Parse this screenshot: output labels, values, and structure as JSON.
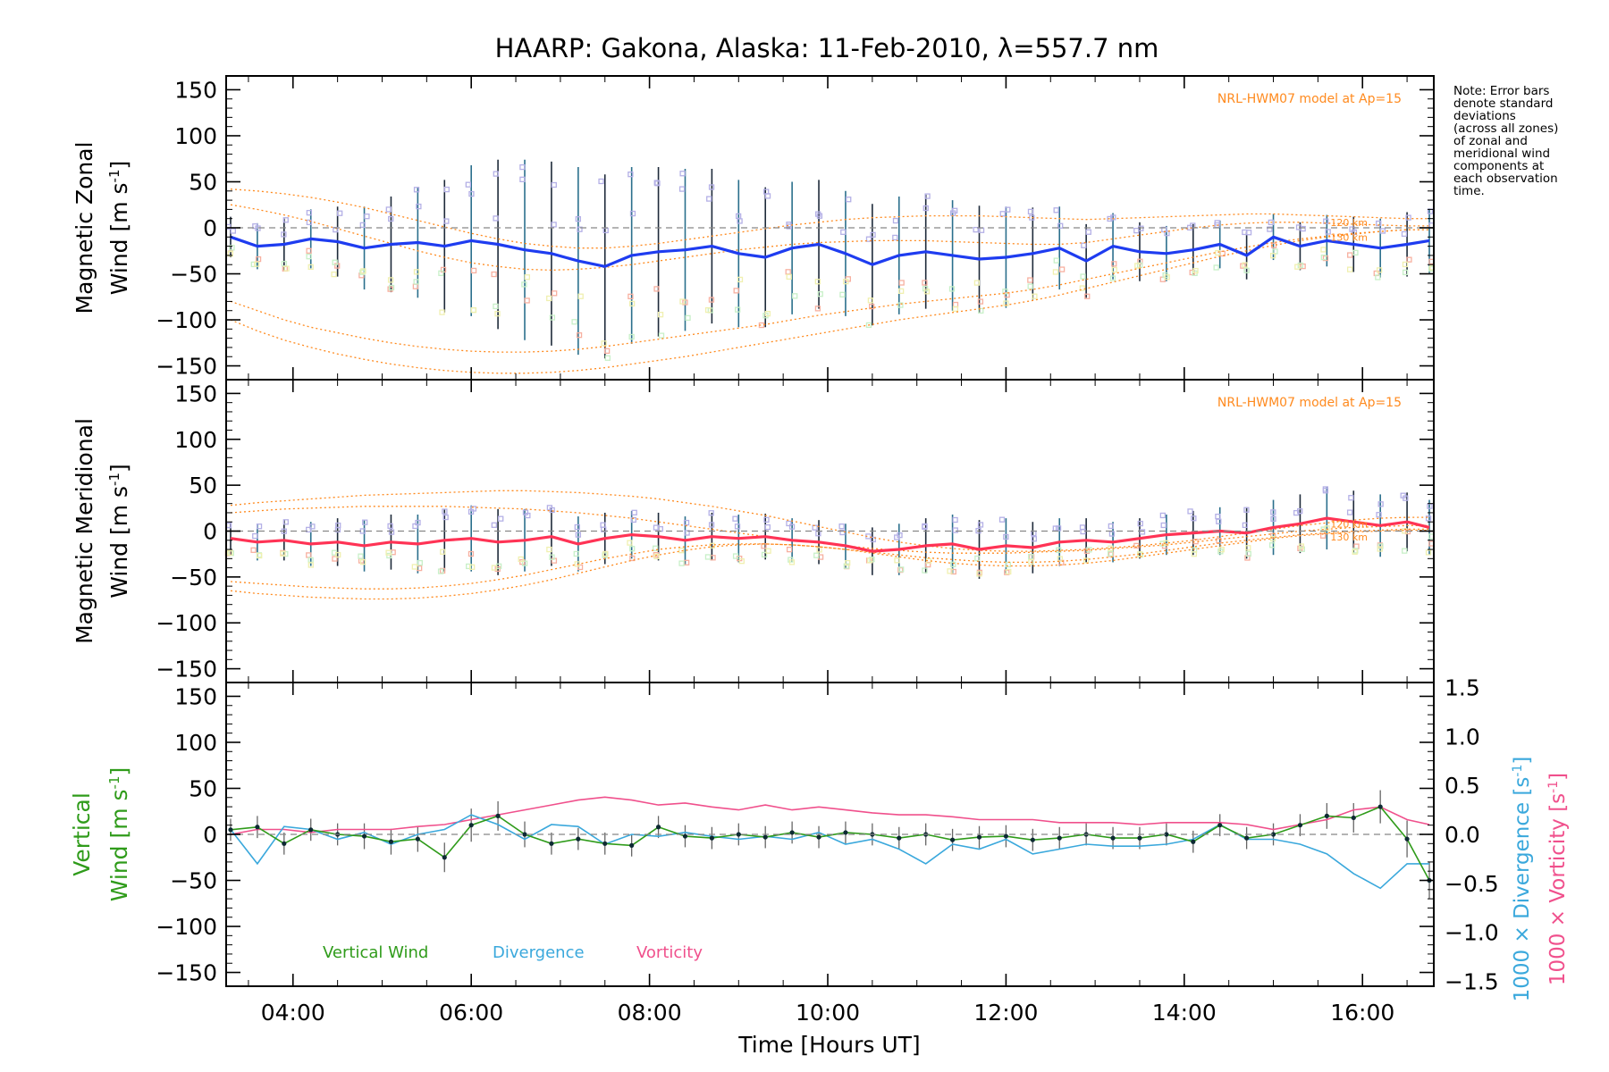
{
  "title": "HAARP: Gakona,  Alaska: 11-Feb-2010, λ=557.7 nm",
  "note": "Note: Error bars\ndenote standard\ndeviations\n(across all zones)\nof zonal and\nmeridional wind\ncomponents at\neach observation\ntime.",
  "colors": {
    "zonal": "#1e3cf0",
    "meridional": "#ff3355",
    "vertical": "#2f9b1a",
    "divergence": "#3aa8dc",
    "vorticity": "#f0508c",
    "model": "#ff8a1e",
    "zone_blue": "#b4b0e6",
    "zone_red": "#f7b0a0",
    "zone_green": "#c8f0c8",
    "zone_yellow": "#f0f0b0",
    "errorbar_dark": "#1e2a3a",
    "errorbar_teal": "#2a6f8c",
    "zero_line": "#888888"
  },
  "chart_data": [
    {
      "type": "line",
      "title": "",
      "ylabel_line1": "Magnetic Zonal",
      "ylabel_line2_prefix": "Wind [m s",
      "ylabel_sup": "-1",
      "ylabel_suffix": "]",
      "ylim": [
        -165,
        165
      ],
      "yticks": [
        "150",
        "100",
        "50",
        "0",
        "−50",
        "−100",
        "−150"
      ],
      "model_label": "NRL-HWM07 model at Ap=15",
      "model_tags": [
        "120 km",
        "130 km"
      ],
      "x": [
        3.3,
        3.6,
        3.9,
        4.2,
        4.5,
        4.8,
        5.1,
        5.4,
        5.7,
        6.0,
        6.3,
        6.6,
        6.9,
        7.2,
        7.5,
        7.8,
        8.1,
        8.4,
        8.7,
        9.0,
        9.3,
        9.6,
        9.9,
        10.2,
        10.5,
        10.8,
        11.1,
        11.4,
        11.7,
        12.0,
        12.3,
        12.6,
        12.9,
        13.2,
        13.5,
        13.8,
        14.1,
        14.4,
        14.7,
        15.0,
        15.3,
        15.6,
        15.9,
        16.2,
        16.5,
        16.75
      ],
      "series": [
        {
          "values": [
            -10,
            -20,
            -18,
            -12,
            -15,
            -22,
            -18,
            -16,
            -20,
            -14,
            -18,
            -24,
            -28,
            -36,
            -42,
            -30,
            -26,
            -24,
            -20,
            -28,
            -32,
            -22,
            -18,
            -28,
            -40,
            -30,
            -26,
            -30,
            -34,
            -32,
            -28,
            -22,
            -36,
            -20,
            -26,
            -28,
            -24,
            -18,
            -30,
            -10,
            -20,
            -14,
            -18,
            -22,
            -18,
            -14
          ],
          "err": [
            22,
            25,
            28,
            32,
            38,
            45,
            52,
            60,
            72,
            82,
            92,
            98,
            100,
            102,
            100,
            96,
            92,
            88,
            84,
            80,
            76,
            72,
            70,
            68,
            66,
            64,
            62,
            60,
            58,
            55,
            50,
            45,
            40,
            36,
            32,
            30,
            28,
            26,
            26,
            25,
            26,
            28,
            30,
            32,
            35,
            35
          ]
        },
        {
          "values": [
            42,
            40,
            37,
            33,
            28,
            22,
            15,
            8,
            1,
            -6,
            -12,
            -17,
            -20,
            -22,
            -22,
            -20,
            -17,
            -13,
            -9,
            -5,
            -1,
            3,
            6,
            9,
            11,
            12,
            13,
            13,
            13,
            12,
            11,
            10,
            9,
            10,
            11,
            12,
            13,
            14,
            15,
            15,
            14,
            13,
            12,
            11,
            10,
            10
          ]
        },
        {
          "values": [
            25,
            20,
            14,
            7,
            -1,
            -9,
            -17,
            -25,
            -32,
            -38,
            -42,
            -45,
            -46,
            -45,
            -43,
            -40,
            -36,
            -32,
            -28,
            -24,
            -21,
            -18,
            -16,
            -15,
            -14,
            -14,
            -14,
            -15,
            -16,
            -17,
            -18,
            -18,
            -16,
            -12,
            -8,
            -4,
            0,
            3,
            5,
            6,
            6,
            5,
            4,
            3,
            2,
            2
          ]
        },
        {
          "values": [
            -80,
            -90,
            -100,
            -108,
            -114,
            -120,
            -125,
            -129,
            -132,
            -134,
            -135,
            -135,
            -134,
            -132,
            -129,
            -125,
            -121,
            -117,
            -113,
            -109,
            -105,
            -100,
            -95,
            -91,
            -87,
            -83,
            -80,
            -77,
            -74,
            -71,
            -67,
            -62,
            -56,
            -50,
            -44,
            -38,
            -32,
            -26,
            -21,
            -16,
            -12,
            -9,
            -6,
            -4,
            -2,
            -2
          ]
        },
        {
          "values": [
            -100,
            -112,
            -122,
            -130,
            -137,
            -143,
            -148,
            -152,
            -155,
            -157,
            -158,
            -158,
            -157,
            -155,
            -152,
            -148,
            -144,
            -140,
            -135,
            -130,
            -125,
            -120,
            -115,
            -110,
            -105,
            -100,
            -96,
            -92,
            -88,
            -84,
            -79,
            -73,
            -66,
            -59,
            -52,
            -45,
            -38,
            -31,
            -25,
            -19,
            -14,
            -10,
            -7,
            -4,
            -2,
            -2
          ]
        }
      ]
    },
    {
      "type": "line",
      "title": "",
      "ylabel_line1": "Magnetic Meridional",
      "ylabel_line2_prefix": "Wind [m s",
      "ylabel_sup": "-1",
      "ylabel_suffix": "]",
      "ylim": [
        -165,
        165
      ],
      "yticks": [
        "150",
        "100",
        "50",
        "0",
        "−50",
        "−100",
        "−150"
      ],
      "model_label": "NRL-HWM07 model at Ap=15",
      "model_tags": [
        "120 km",
        "130 km"
      ],
      "x": [
        3.3,
        3.6,
        3.9,
        4.2,
        4.5,
        4.8,
        5.1,
        5.4,
        5.7,
        6.0,
        6.3,
        6.6,
        6.9,
        7.2,
        7.5,
        7.8,
        8.1,
        8.4,
        8.7,
        9.0,
        9.3,
        9.6,
        9.9,
        10.2,
        10.5,
        10.8,
        11.1,
        11.4,
        11.7,
        12.0,
        12.3,
        12.6,
        12.9,
        13.2,
        13.5,
        13.8,
        14.1,
        14.4,
        14.7,
        15.0,
        15.3,
        15.6,
        15.9,
        16.2,
        16.5,
        16.75
      ],
      "series": [
        {
          "values": [
            -8,
            -12,
            -10,
            -14,
            -12,
            -16,
            -12,
            -14,
            -10,
            -8,
            -12,
            -10,
            -6,
            -14,
            -8,
            -4,
            -6,
            -10,
            -6,
            -8,
            -6,
            -10,
            -12,
            -16,
            -22,
            -20,
            -16,
            -14,
            -20,
            -16,
            -18,
            -12,
            -10,
            -12,
            -8,
            -4,
            -2,
            0,
            -2,
            4,
            8,
            14,
            10,
            6,
            10,
            4
          ],
          "err": [
            18,
            20,
            22,
            24,
            26,
            28,
            30,
            32,
            34,
            36,
            36,
            34,
            32,
            30,
            28,
            26,
            26,
            26,
            26,
            26,
            25,
            24,
            24,
            24,
            26,
            28,
            30,
            32,
            32,
            30,
            28,
            26,
            24,
            22,
            22,
            22,
            24,
            26,
            28,
            30,
            32,
            34,
            34,
            34,
            32,
            30
          ]
        },
        {
          "values": [
            28,
            31,
            33,
            35,
            37,
            39,
            40,
            41,
            42,
            43,
            44,
            44,
            43,
            42,
            40,
            38,
            35,
            31,
            27,
            22,
            17,
            11,
            5,
            -1,
            -7,
            -12,
            -16,
            -19,
            -21,
            -22,
            -22,
            -21,
            -20,
            -18,
            -16,
            -13,
            -10,
            -6,
            -2,
            2,
            6,
            9,
            12,
            14,
            15,
            15
          ]
        },
        {
          "values": [
            20,
            22,
            24,
            25,
            26,
            27,
            27,
            27,
            27,
            26,
            25,
            24,
            22,
            20,
            17,
            14,
            10,
            6,
            2,
            -2,
            -6,
            -10,
            -13,
            -16,
            -19,
            -21,
            -23,
            -24,
            -24,
            -24,
            -23,
            -22,
            -21,
            -19,
            -17,
            -15,
            -12,
            -9,
            -6,
            -3,
            0,
            2,
            4,
            5,
            6,
            6
          ]
        },
        {
          "values": [
            -65,
            -68,
            -70,
            -72,
            -73,
            -74,
            -74,
            -73,
            -71,
            -68,
            -64,
            -59,
            -53,
            -46,
            -39,
            -32,
            -26,
            -21,
            -17,
            -15,
            -14,
            -15,
            -17,
            -20,
            -24,
            -28,
            -32,
            -35,
            -37,
            -38,
            -38,
            -37,
            -35,
            -32,
            -28,
            -24,
            -20,
            -16,
            -12,
            -8,
            -5,
            -3,
            -1,
            0,
            1,
            1
          ]
        },
        {
          "values": [
            -55,
            -57,
            -59,
            -61,
            -62,
            -63,
            -63,
            -62,
            -60,
            -57,
            -53,
            -48,
            -42,
            -36,
            -30,
            -25,
            -20,
            -17,
            -15,
            -14,
            -14,
            -15,
            -17,
            -20,
            -23,
            -26,
            -29,
            -31,
            -33,
            -34,
            -34,
            -33,
            -31,
            -28,
            -25,
            -21,
            -17,
            -13,
            -10,
            -7,
            -4,
            -2,
            0,
            1,
            2,
            2
          ]
        }
      ]
    },
    {
      "type": "line",
      "title": "",
      "ylabel_vert_line1": "Vertical",
      "ylabel_vert_line2_prefix": "Wind [m s",
      "ylabel_sup": "-1",
      "ylabel_suffix": "]",
      "ylim": [
        -165,
        165
      ],
      "yticks": [
        "150",
        "100",
        "50",
        "0",
        "−50",
        "−100",
        "−150"
      ],
      "ylim_right": [
        -1.55,
        1.55
      ],
      "yticks_right": [
        "1.5",
        "1.0",
        "0.5",
        "0.0",
        "−0.5",
        "−1.0",
        "−1.5"
      ],
      "ylabel_right_div": "1000 × Divergence [s",
      "ylabel_right_vort": "1000 × Vorticity [s",
      "ylabel_right_sup": "-1",
      "ylabel_right_suffix": "]",
      "legend": [
        "Vertical Wind",
        "Divergence",
        "Vorticity"
      ],
      "xlabel": "Time [Hours UT]",
      "xticks": [
        "04:00",
        "06:00",
        "08:00",
        "10:00",
        "12:00",
        "14:00",
        "16:00"
      ],
      "xlim": [
        3.25,
        16.8
      ],
      "x": [
        3.3,
        3.6,
        3.9,
        4.2,
        4.5,
        4.8,
        5.1,
        5.4,
        5.7,
        6.0,
        6.3,
        6.6,
        6.9,
        7.2,
        7.5,
        7.8,
        8.1,
        8.4,
        8.7,
        9.0,
        9.3,
        9.6,
        9.9,
        10.2,
        10.5,
        10.8,
        11.1,
        11.4,
        11.7,
        12.0,
        12.3,
        12.6,
        12.9,
        13.2,
        13.5,
        13.8,
        14.1,
        14.4,
        14.7,
        15.0,
        15.3,
        15.6,
        15.9,
        16.2,
        16.5,
        16.75
      ],
      "series": [
        {
          "name": "Vertical Wind",
          "values": [
            5,
            8,
            -10,
            5,
            0,
            -2,
            -8,
            -5,
            -25,
            10,
            20,
            0,
            -10,
            -5,
            -10,
            -12,
            8,
            -2,
            -4,
            0,
            -3,
            2,
            -3,
            2,
            0,
            -4,
            0,
            -6,
            -3,
            -2,
            -6,
            -4,
            0,
            -4,
            -4,
            0,
            -8,
            10,
            -4,
            0,
            10,
            20,
            18,
            30,
            -5,
            -50
          ],
          "err": [
            12,
            12,
            12,
            12,
            12,
            14,
            14,
            14,
            16,
            18,
            16,
            14,
            12,
            12,
            12,
            12,
            12,
            12,
            12,
            12,
            12,
            12,
            12,
            12,
            12,
            12,
            12,
            12,
            12,
            12,
            12,
            12,
            12,
            12,
            12,
            12,
            12,
            12,
            12,
            12,
            12,
            14,
            16,
            18,
            20,
            20
          ]
        },
        {
          "name": "Divergence",
          "values": [
            0.05,
            -0.3,
            0.08,
            0.05,
            -0.05,
            0.02,
            -0.1,
            0.0,
            0.05,
            0.2,
            0.1,
            -0.05,
            0.1,
            0.08,
            -0.1,
            0.0,
            -0.02,
            0.02,
            -0.02,
            -0.05,
            -0.02,
            -0.05,
            0.02,
            -0.1,
            -0.05,
            -0.15,
            -0.3,
            -0.1,
            -0.15,
            -0.05,
            -0.2,
            -0.15,
            -0.1,
            -0.12,
            -0.12,
            -0.1,
            -0.05,
            0.1,
            -0.05,
            -0.05,
            -0.1,
            -0.2,
            -0.4,
            -0.55,
            -0.3,
            -0.3
          ]
        },
        {
          "name": "Vorticity",
          "values": [
            0.0,
            0.05,
            0.05,
            0.02,
            0.05,
            0.05,
            0.05,
            0.08,
            0.1,
            0.15,
            0.2,
            0.25,
            0.3,
            0.35,
            0.38,
            0.35,
            0.3,
            0.32,
            0.28,
            0.25,
            0.3,
            0.25,
            0.28,
            0.25,
            0.22,
            0.2,
            0.2,
            0.18,
            0.15,
            0.15,
            0.15,
            0.12,
            0.12,
            0.12,
            0.1,
            0.12,
            0.12,
            0.12,
            0.1,
            0.05,
            0.1,
            0.15,
            0.25,
            0.28,
            0.15,
            0.1
          ]
        }
      ]
    }
  ]
}
